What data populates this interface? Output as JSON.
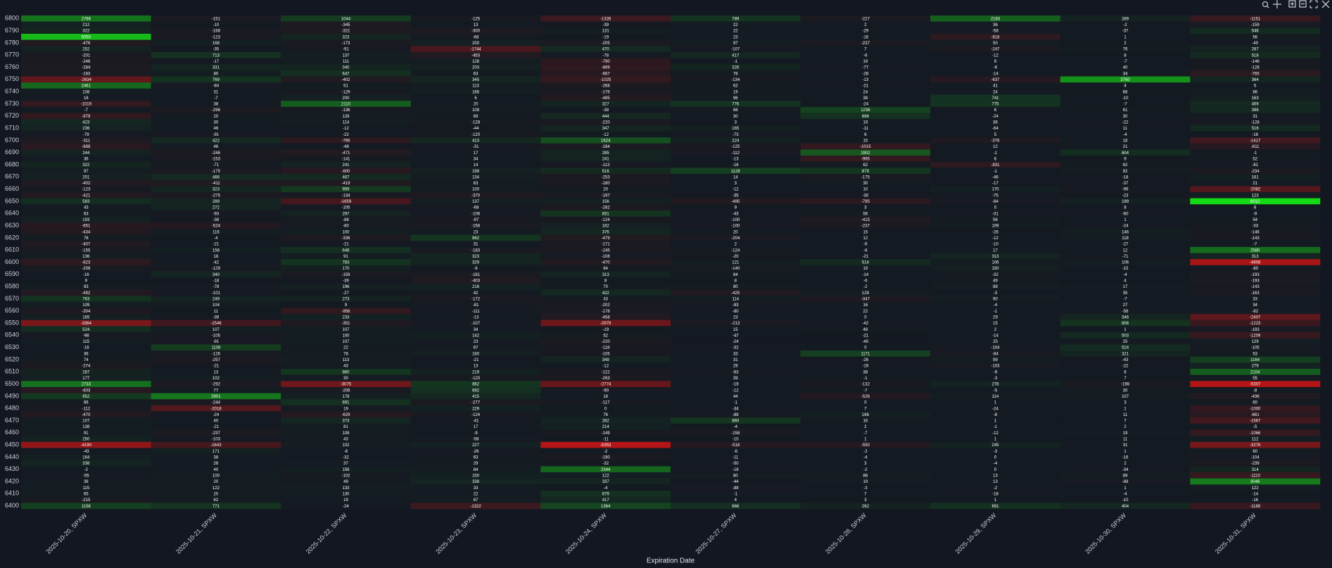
{
  "chart_data": {
    "type": "heatmap",
    "xlabel": "Expiration Date",
    "categories": [
      "2025-10-20, SPXW",
      "2025-10-21, SPXW",
      "2025-10-22, SPXW",
      "2025-10-23, SPXW",
      "2025-10-24, SPXW",
      "2025-10-27, SPXW",
      "2025-10-28, SPXW",
      "2025-10-29, SPXW",
      "2025-10-30, SPXW",
      "2025-10-31, SPXW"
    ],
    "y": [
      6800,
      null,
      6790,
      null,
      6780,
      null,
      6770,
      null,
      6760,
      null,
      6750,
      null,
      6740,
      null,
      6730,
      null,
      6720,
      null,
      6710,
      null,
      6700,
      null,
      6690,
      null,
      6680,
      null,
      6670,
      null,
      6660,
      null,
      6650,
      null,
      6640,
      null,
      6630,
      null,
      6620,
      null,
      6610,
      null,
      6600,
      null,
      6590,
      null,
      6580,
      null,
      6570,
      null,
      6560,
      null,
      6550,
      null,
      6540,
      null,
      6530,
      null,
      6520,
      null,
      6510,
      null,
      6500,
      null,
      6490,
      null,
      6480,
      null,
      6470,
      null,
      6460,
      null,
      6450,
      null,
      6440,
      null,
      6430,
      null,
      6420,
      null,
      6410,
      null,
      6400
    ],
    "zlim": [
      -6000,
      6000
    ],
    "colors": {
      "positive": "#16d916",
      "negative": "#c81414",
      "zero": "#141a22"
    },
    "values": [
      [
        2766,
        -151,
        1044,
        -125,
        -1326,
        789,
        -227,
        2183,
        289,
        -1151
      ],
      [
        212,
        -10,
        -345,
        13,
        -39,
        22,
        2,
        36,
        -2,
        -159
      ],
      [
        322,
        -168,
        -321,
        -300,
        131,
        22,
        -29,
        -58,
        -37,
        546
      ],
      [
        5050,
        -123,
        323,
        -68,
        -19,
        23,
        -16,
        -818,
        1,
        56
      ],
      [
        -476,
        168,
        -173,
        200,
        -205,
        97,
        -237,
        50,
        2,
        -40
      ],
      [
        252,
        -35,
        -91,
        -1744,
        470,
        -107,
        7,
        -247,
        76,
        287
      ],
      [
        -201,
        713,
        137,
        -453,
        -78,
        417,
        -6,
        -12,
        8,
        518
      ],
      [
        -246,
        -17,
        111,
        128,
        -790,
        -1,
        19,
        9,
        -7,
        -146
      ],
      [
        -284,
        331,
        340,
        203,
        -869,
        326,
        -77,
        -6,
        40,
        -128
      ],
      [
        -183,
        80,
        647,
        63,
        -667,
        78,
        -28,
        -14,
        34,
        -765
      ],
      [
        -2634,
        769,
        -402,
        345,
        -1025,
        -134,
        -13,
        -637,
        3760,
        364
      ],
      [
        2461,
        -84,
        51,
        113,
        -268,
        62,
        -21,
        41,
        4,
        5
      ],
      [
        108,
        31,
        -129,
        166,
        -176,
        19,
        24,
        24,
        66,
        86
      ],
      [
        16,
        -7,
        200,
        6,
        -485,
        96,
        38,
        741,
        -10,
        163
      ],
      [
        -1019,
        38,
        2110,
        20,
        327,
        776,
        -24,
        775,
        -7,
        459
      ],
      [
        -7,
        -296,
        -136,
        108,
        -38,
        68,
        1236,
        6,
        61,
        396
      ],
      [
        -979,
        20,
        128,
        69,
        444,
        30,
        686,
        -24,
        30,
        31
      ],
      [
        423,
        30,
        114,
        -128,
        -220,
        3,
        19,
        36,
        -22,
        -128
      ],
      [
        236,
        46,
        -12,
        -44,
        347,
        165,
        -11,
        -64,
        11,
        516
      ],
      [
        -79,
        -91,
        -22,
        -120,
        -12,
        -73,
        6,
        5,
        -4,
        -16
      ],
      [
        -311,
        422,
        -766,
        413,
        1624,
        224,
        15,
        -376,
        16,
        -1417
      ],
      [
        -688,
        46,
        -48,
        -31,
        -184,
        -125,
        -1015,
        12,
        21,
        -611
      ],
      [
        244,
        -246,
        -471,
        17,
        285,
        -112,
        1902,
        -1,
        604,
        -1
      ],
      [
        36,
        -153,
        -141,
        34,
        241,
        -13,
        -995,
        6,
        9,
        52
      ],
      [
        322,
        -71,
        241,
        14,
        -113,
        -16,
        62,
        -831,
        62,
        -81
      ],
      [
        97,
        -175,
        -600,
        199,
        516,
        1128,
        879,
        -1,
        92,
        -234
      ],
      [
        201,
        466,
        467,
        134,
        -253,
        14,
        -175,
        -46,
        -18,
        161
      ],
      [
        -402,
        -411,
        -419,
        63,
        -180,
        3,
        30,
        -17,
        -37,
        21
      ],
      [
        -123,
        323,
        959,
        100,
        20,
        -12,
        10,
        170,
        -99,
        -2082
      ],
      [
        -421,
        -275,
        -134,
        -370,
        -197,
        -35,
        -30,
        -75,
        -23,
        123
      ],
      [
        583,
        289,
        -1659,
        137,
        156,
        -495,
        -795,
        -84,
        199,
        6012
      ],
      [
        43,
        272,
        -105,
        -68,
        -282,
        9,
        3,
        0,
        8,
        8
      ],
      [
        63,
        -93,
        297,
        -106,
        831,
        -43,
        56,
        -31,
        -60,
        -9
      ],
      [
        193,
        -38,
        -88,
        -97,
        -124,
        -100,
        -415,
        56,
        1,
        54
      ],
      [
        -651,
        -524,
        -80,
        -158,
        182,
        -100,
        -237,
        109,
        -24,
        -33
      ],
      [
        -434,
        116,
        100,
        23,
        376,
        20,
        15,
        -26,
        146,
        -146
      ],
      [
        78,
        -4,
        -336,
        862,
        -479,
        -204,
        12,
        -12,
        118,
        -143
      ],
      [
        -407,
        -21,
        -21,
        31,
        -171,
        2,
        -6,
        -10,
        -27,
        -7
      ],
      [
        -155,
        156,
        646,
        -183,
        -245,
        -124,
        -8,
        17,
        12,
        2580
      ],
      [
        136,
        18,
        91,
        323,
        -108,
        -20,
        -21,
        313,
        -71,
        313
      ],
      [
        -823,
        -42,
        783,
        329,
        -470,
        121,
        514,
        106,
        106,
        -4908
      ],
      [
        -208,
        -129,
        170,
        -6,
        64,
        -140,
        19,
        150,
        -15,
        -80
      ],
      [
        -16,
        340,
        -159,
        -181,
        313,
        64,
        -14,
        -32,
        -4,
        -193
      ],
      [
        9,
        -18,
        -39,
        -403,
        8,
        8,
        -6,
        49,
        4,
        -193
      ],
      [
        83,
        -78,
        196,
        216,
        70,
        80,
        -2,
        88,
        17,
        -143
      ],
      [
        -492,
        -101,
        -27,
        42,
        422,
        -425,
        128,
        -3,
        35,
        -163
      ],
      [
        763,
        249,
        273,
        -172,
        33,
        114,
        -347,
        90,
        -7,
        33
      ],
      [
        109,
        104,
        9,
        -81,
        -202,
        -83,
        16,
        -4,
        27,
        34
      ],
      [
        -304,
        11,
        -956,
        -111,
        -178,
        -80,
        22,
        -1,
        -56,
        -82
      ],
      [
        165,
        -39,
        233,
        -13,
        -458,
        23,
        0,
        29,
        346,
        -2407
      ],
      [
        -3364,
        -1546,
        -351,
        -107,
        -2979,
        -213,
        -42,
        15,
        806,
        -1223
      ],
      [
        524,
        107,
        107,
        34,
        -19,
        15,
        48,
        2,
        1,
        -193
      ],
      [
        -98,
        -105,
        100,
        142,
        52,
        -47,
        -21,
        -14,
        503,
        -1209
      ],
      [
        115,
        -91,
        107,
        23,
        -220,
        -24,
        -40,
        25,
        25,
        129
      ],
      [
        -16,
        1108,
        22,
        67,
        -118,
        -32,
        0,
        -104,
        524,
        -105
      ],
      [
        36,
        -126,
        78,
        160,
        -105,
        33,
        1171,
        -84,
        321,
        53
      ],
      [
        74,
        -257,
        113,
        -21,
        349,
        31,
        -26,
        99,
        -43,
        1164
      ],
      [
        -274,
        -21,
        43,
        13,
        -12,
        29,
        -19,
        -103,
        -22,
        279
      ],
      [
        287,
        13,
        860,
        219,
        -122,
        -63,
        38,
        -9,
        6,
        2104
      ],
      [
        177,
        102,
        30,
        -120,
        -263,
        39,
        -1,
        -3,
        7,
        55
      ],
      [
        2733,
        -292,
        -3075,
        862,
        -2774,
        -19,
        -132,
        278,
        -198,
        -5307
      ],
      [
        -603,
        77,
        -206,
        692,
        -90,
        -12,
        -7,
        -5,
        30,
        -8
      ],
      [
        952,
        2901,
        178,
        415,
        18,
        44,
        -526,
        114,
        107,
        -436
      ],
      [
        66,
        -244,
        691,
        -277,
        -117,
        -1,
        0,
        1,
        3,
        60
      ],
      [
        -112,
        -2018,
        19,
        229,
        0,
        -34,
        7,
        -24,
        1,
        -1000
      ],
      [
        -470,
        -24,
        -629,
        -124,
        76,
        -88,
        166,
        -8,
        11,
        -661
      ],
      [
        107,
        40,
        373,
        -41,
        282,
        860,
        16,
        1,
        7,
        -1567
      ],
      [
        138,
        -21,
        81,
        17,
        214,
        -4,
        2,
        -1,
        2,
        -5
      ],
      [
        91,
        -237,
        108,
        -9,
        -149,
        -158,
        -7,
        -12,
        19,
        -1066
      ],
      [
        250,
        -103,
        43,
        -58,
        -11,
        -10,
        1,
        1,
        11,
        112
      ],
      [
        -4190,
        -1643,
        102,
        227,
        -5353,
        -518,
        -550,
        245,
        31,
        -3276
      ],
      [
        -43,
        171,
        -6,
        -26,
        -2,
        -6,
        -2,
        -3,
        1,
        60
      ],
      [
        164,
        38,
        -32,
        63,
        -190,
        -11,
        -4,
        0,
        -16,
        -104
      ],
      [
        338,
        28,
        37,
        29,
        -32,
        -50,
        3,
        -4,
        2,
        -239
      ],
      [
        -2,
        40,
        156,
        84,
        2344,
        -18,
        -2,
        0,
        -34,
        314
      ],
      [
        -55,
        100,
        -102,
        150,
        122,
        80,
        86,
        13,
        89,
        -1110
      ],
      [
        36,
        20,
        49,
        338,
        337,
        -44,
        19,
        13,
        -88,
        3046
      ],
      [
        115,
        122,
        133,
        33,
        -4,
        -88,
        -3,
        -2,
        1,
        122
      ],
      [
        65,
        20,
        130,
        22,
        679,
        -1,
        7,
        -18,
        -4,
        -14
      ],
      [
        -215,
        62,
        19,
        67,
        417,
        4,
        3,
        1,
        -10,
        -16
      ],
      [
        1158,
        771,
        -24,
        -1322,
        1364,
        666,
        262,
        691,
        404,
        -1189
      ]
    ]
  }
}
